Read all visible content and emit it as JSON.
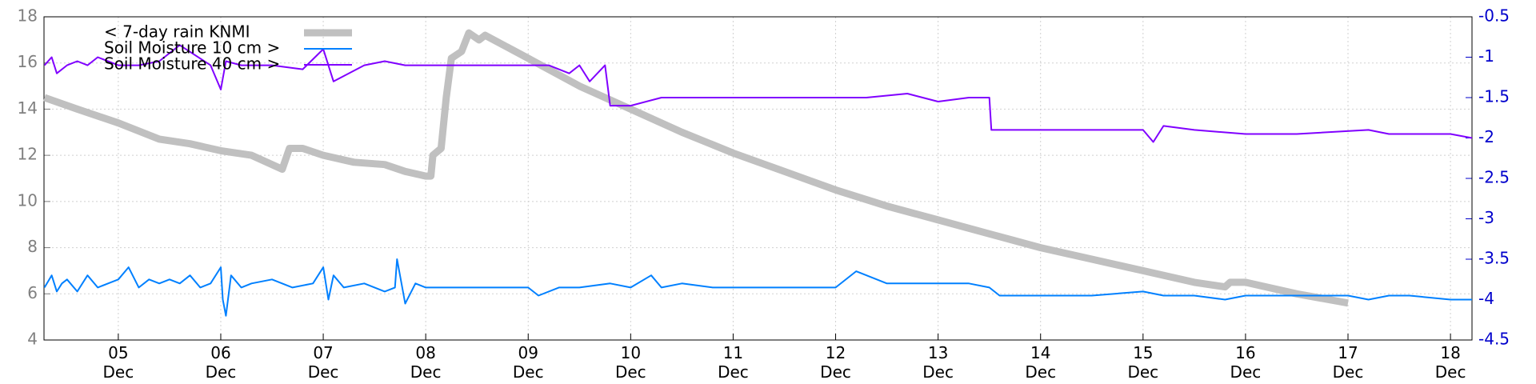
{
  "chart_data": {
    "type": "line",
    "xlim": [
      4.275,
      18.21
    ],
    "xticks": [
      {
        "value": 5,
        "label": "05 Dec"
      },
      {
        "value": 6,
        "label": "06 Dec"
      },
      {
        "value": 7,
        "label": "07 Dec"
      },
      {
        "value": 8,
        "label": "08 Dec"
      },
      {
        "value": 9,
        "label": "09 Dec"
      },
      {
        "value": 10,
        "label": "10 Dec"
      },
      {
        "value": 11,
        "label": "11 Dec"
      },
      {
        "value": 12,
        "label": "12 Dec"
      },
      {
        "value": 13,
        "label": "13 Dec"
      },
      {
        "value": 14,
        "label": "14 Dec"
      },
      {
        "value": 15,
        "label": "15 Dec"
      },
      {
        "value": 16,
        "label": "16 Dec"
      },
      {
        "value": 17,
        "label": "17 Dec"
      },
      {
        "value": 18,
        "label": "18 Dec"
      }
    ],
    "ylim": [
      4,
      18
    ],
    "yticks": [
      4,
      6,
      8,
      10,
      12,
      14,
      16,
      18
    ],
    "y2lim": [
      -4.5,
      -0.5
    ],
    "y2ticks": [
      -4.5,
      -4,
      -3.5,
      -3,
      -2.5,
      -2,
      -1.5,
      -1,
      -0.5
    ],
    "grid": true,
    "legend": "upper left",
    "series": [
      {
        "name": "< 7-day rain KNMI",
        "color": "#c0c0c0",
        "axis": "y",
        "x": [
          4.28,
          4.6,
          5.0,
          5.4,
          5.7,
          6.0,
          6.3,
          6.6,
          6.67,
          6.8,
          7.0,
          7.3,
          7.6,
          7.8,
          8.0,
          8.05,
          8.07,
          8.15,
          8.2,
          8.25,
          8.35,
          8.42,
          8.52,
          8.58,
          9.0,
          9.5,
          10.0,
          10.5,
          11.0,
          11.5,
          12.0,
          12.5,
          13.0,
          13.5,
          14.0,
          14.5,
          15.0,
          15.5,
          15.8,
          15.85,
          16.0,
          16.5,
          17.0
        ],
        "values": [
          14.5,
          14.0,
          13.4,
          12.7,
          12.5,
          12.2,
          12.0,
          11.4,
          12.3,
          12.3,
          12.0,
          11.7,
          11.6,
          11.3,
          11.1,
          11.1,
          12.0,
          12.3,
          14.5,
          16.2,
          16.5,
          17.3,
          17.0,
          17.2,
          16.2,
          15.0,
          14.0,
          13.0,
          12.1,
          11.3,
          10.5,
          9.8,
          9.2,
          8.6,
          8.0,
          7.5,
          7.0,
          6.5,
          6.3,
          6.5,
          6.5,
          6.0,
          5.6
        ]
      },
      {
        "name": "Soil Moisture 10 cm >",
        "color": "#0080ff",
        "axis": "y2",
        "x": [
          4.28,
          4.35,
          4.4,
          4.45,
          4.5,
          4.6,
          4.7,
          4.8,
          4.9,
          5.0,
          5.1,
          5.2,
          5.3,
          5.4,
          5.5,
          5.6,
          5.7,
          5.8,
          5.9,
          6.0,
          6.02,
          6.05,
          6.1,
          6.2,
          6.3,
          6.5,
          6.7,
          6.9,
          7.0,
          7.05,
          7.1,
          7.2,
          7.4,
          7.6,
          7.7,
          7.72,
          7.8,
          7.9,
          8.0,
          8.2,
          8.5,
          8.8,
          9.0,
          9.1,
          9.3,
          9.5,
          9.8,
          10.0,
          10.2,
          10.3,
          10.5,
          10.8,
          11.0,
          11.5,
          12.0,
          12.2,
          12.5,
          13.0,
          13.3,
          13.5,
          13.6,
          14.0,
          14.5,
          15.0,
          15.2,
          15.5,
          15.8,
          16.0,
          17.0,
          17.2,
          17.4,
          17.6,
          18.0,
          18.21
        ],
        "values": [
          -3.85,
          -3.7,
          -3.9,
          -3.8,
          -3.75,
          -3.9,
          -3.7,
          -3.85,
          -3.8,
          -3.75,
          -3.6,
          -3.85,
          -3.75,
          -3.8,
          -3.75,
          -3.8,
          -3.7,
          -3.85,
          -3.8,
          -3.6,
          -4.0,
          -4.2,
          -3.7,
          -3.85,
          -3.8,
          -3.75,
          -3.85,
          -3.8,
          -3.6,
          -4.0,
          -3.7,
          -3.85,
          -3.8,
          -3.9,
          -3.85,
          -3.5,
          -4.05,
          -3.8,
          -3.85,
          -3.85,
          -3.85,
          -3.85,
          -3.85,
          -3.95,
          -3.85,
          -3.85,
          -3.8,
          -3.85,
          -3.7,
          -3.85,
          -3.8,
          -3.85,
          -3.85,
          -3.85,
          -3.85,
          -3.65,
          -3.8,
          -3.8,
          -3.8,
          -3.85,
          -3.95,
          -3.95,
          -3.95,
          -3.9,
          -3.95,
          -3.95,
          -4.0,
          -3.95,
          -3.95,
          -4.0,
          -3.95,
          -3.95,
          -4.0,
          -4.0
        ]
      },
      {
        "name": "Soil Moisture 40 cm >",
        "color": "#8000ff",
        "axis": "y2",
        "x": [
          4.28,
          4.35,
          4.4,
          4.5,
          4.6,
          4.7,
          4.8,
          5.0,
          5.2,
          5.4,
          5.6,
          5.9,
          6.0,
          6.05,
          6.2,
          6.5,
          6.8,
          7.0,
          7.1,
          7.4,
          7.6,
          7.8,
          8.0,
          8.3,
          8.6,
          9.0,
          9.2,
          9.4,
          9.5,
          9.6,
          9.75,
          9.8,
          10.0,
          10.3,
          10.8,
          11.5,
          12.0,
          12.3,
          12.7,
          13.0,
          13.3,
          13.5,
          13.52,
          14.0,
          14.5,
          15.0,
          15.1,
          15.2,
          15.5,
          16.0,
          16.5,
          17.2,
          17.4,
          18.0,
          18.21
        ],
        "values": [
          -1.1,
          -1.0,
          -1.2,
          -1.1,
          -1.05,
          -1.1,
          -1.0,
          -1.1,
          -1.1,
          -1.05,
          -0.85,
          -1.1,
          -1.4,
          -1.05,
          -1.1,
          -1.1,
          -1.15,
          -0.9,
          -1.3,
          -1.1,
          -1.05,
          -1.1,
          -1.1,
          -1.1,
          -1.1,
          -1.1,
          -1.1,
          -1.2,
          -1.1,
          -1.3,
          -1.1,
          -1.6,
          -1.6,
          -1.5,
          -1.5,
          -1.5,
          -1.5,
          -1.5,
          -1.45,
          -1.55,
          -1.5,
          -1.5,
          -1.9,
          -1.9,
          -1.9,
          -1.9,
          -2.05,
          -1.85,
          -1.9,
          -1.95,
          -1.95,
          -1.9,
          -1.95,
          -1.95,
          -2.0
        ]
      }
    ]
  }
}
